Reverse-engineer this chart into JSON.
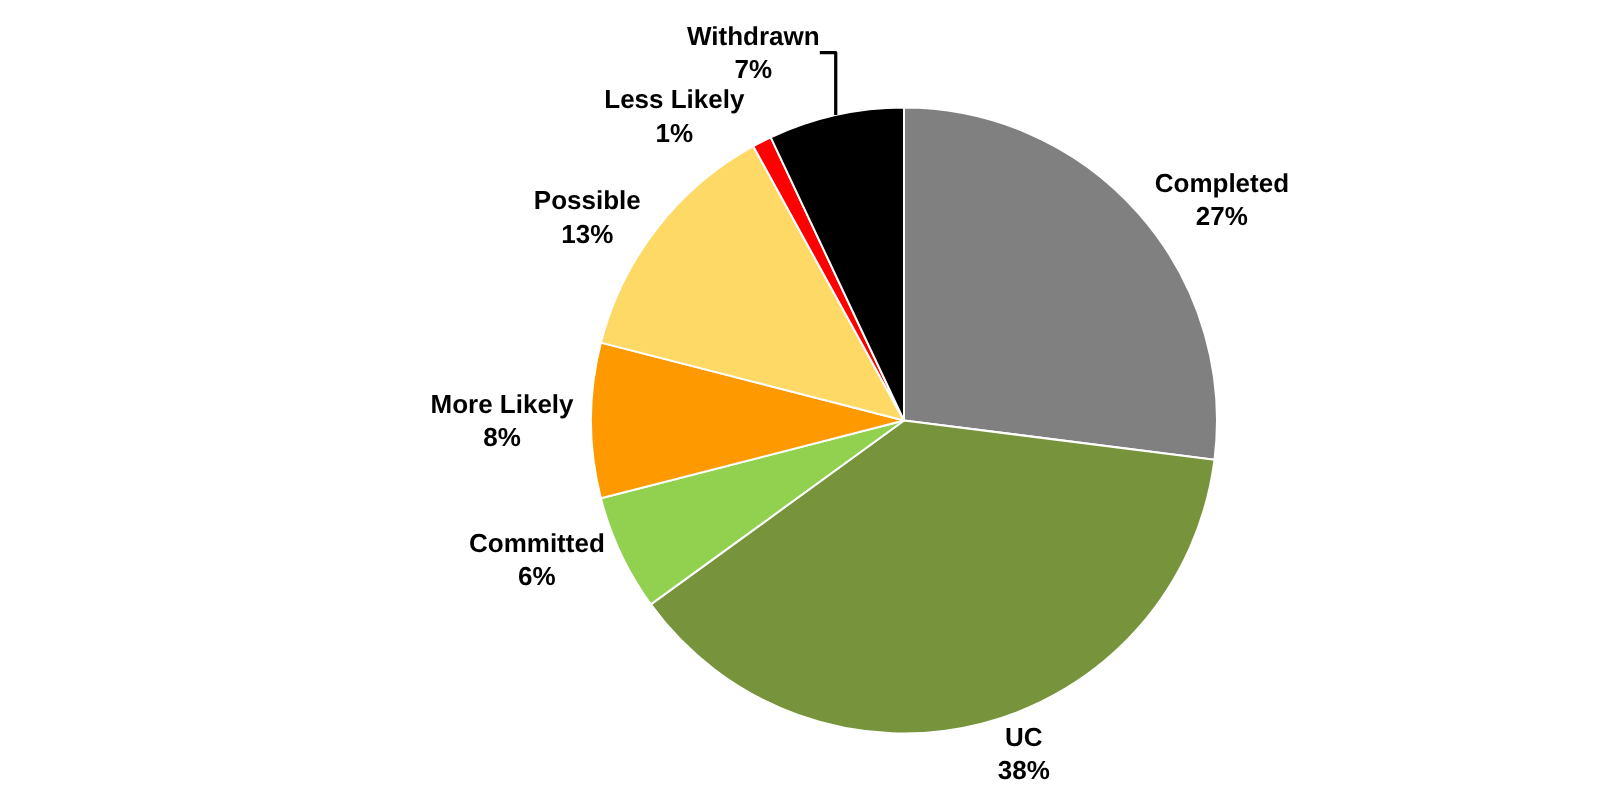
{
  "chart_data": {
    "type": "pie",
    "categories": [
      "Completed",
      "UC",
      "Committed",
      "More Likely",
      "Possible",
      "Less Likely",
      "Withdrawn"
    ],
    "values": [
      27,
      38,
      6,
      8,
      13,
      1,
      7
    ],
    "value_labels": [
      "27%",
      "38%",
      "6%",
      "8%",
      "13%",
      "1%",
      "7%"
    ],
    "colors": [
      "#808080",
      "#77933c",
      "#92d050",
      "#ff9900",
      "#ffd966",
      "#ff0000",
      "#000000"
    ],
    "legend": false
  }
}
